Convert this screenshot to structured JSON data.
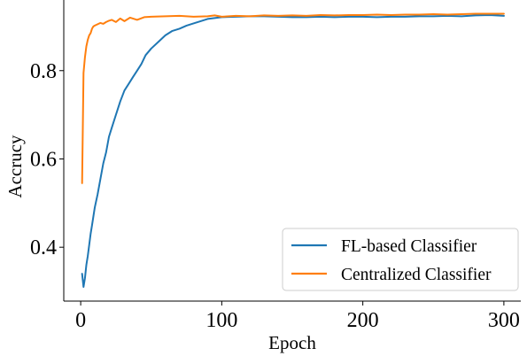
{
  "chart_data": {
    "type": "line",
    "title": "",
    "xlabel": "Epoch",
    "ylabel": "Accrucy",
    "xlim": [
      -12,
      312
    ],
    "ylim": [
      0.278,
      0.96
    ],
    "xticks": [
      0,
      100,
      200,
      300
    ],
    "yticks": [
      0.4,
      0.6,
      0.8
    ],
    "xtick_labels": [
      "0",
      "100",
      "200",
      "300"
    ],
    "ytick_labels": [
      "0.4",
      "0.6",
      "0.8"
    ],
    "grid": false,
    "spines": [
      "left",
      "bottom"
    ],
    "legend_position": "lower-right",
    "series": [
      {
        "name": "FL-based Classifier",
        "color": "#1f77b4",
        "x": [
          1,
          2,
          3,
          4,
          5,
          6,
          7,
          8,
          10,
          12,
          14,
          16,
          18,
          20,
          22,
          25,
          28,
          31,
          34,
          37,
          40,
          43,
          46,
          50,
          55,
          60,
          65,
          70,
          75,
          80,
          85,
          90,
          95,
          100,
          110,
          120,
          130,
          140,
          150,
          160,
          170,
          180,
          190,
          200,
          210,
          220,
          230,
          240,
          250,
          260,
          270,
          280,
          290,
          300
        ],
        "y": [
          0.34,
          0.31,
          0.33,
          0.36,
          0.38,
          0.405,
          0.43,
          0.45,
          0.49,
          0.52,
          0.555,
          0.59,
          0.615,
          0.65,
          0.67,
          0.7,
          0.73,
          0.755,
          0.77,
          0.785,
          0.8,
          0.815,
          0.835,
          0.85,
          0.865,
          0.88,
          0.89,
          0.895,
          0.902,
          0.907,
          0.912,
          0.917,
          0.919,
          0.921,
          0.922,
          0.923,
          0.923,
          0.922,
          0.921,
          0.921,
          0.922,
          0.921,
          0.922,
          0.922,
          0.921,
          0.922,
          0.922,
          0.923,
          0.923,
          0.924,
          0.923,
          0.925,
          0.926,
          0.924
        ]
      },
      {
        "name": "Centralized Classifier",
        "color": "#ff7f0e",
        "x": [
          1,
          2,
          3,
          4,
          5,
          6,
          7,
          8,
          9,
          10,
          12,
          14,
          16,
          18,
          20,
          22,
          25,
          28,
          31,
          35,
          40,
          45,
          50,
          60,
          70,
          80,
          90,
          95,
          100,
          110,
          120,
          130,
          140,
          150,
          160,
          170,
          180,
          190,
          200,
          210,
          220,
          230,
          240,
          250,
          260,
          270,
          280,
          290,
          300
        ],
        "y": [
          0.545,
          0.795,
          0.83,
          0.855,
          0.87,
          0.88,
          0.885,
          0.895,
          0.9,
          0.902,
          0.905,
          0.908,
          0.906,
          0.91,
          0.913,
          0.915,
          0.91,
          0.918,
          0.912,
          0.92,
          0.915,
          0.921,
          0.922,
          0.923,
          0.924,
          0.922,
          0.923,
          0.925,
          0.922,
          0.924,
          0.923,
          0.925,
          0.924,
          0.925,
          0.924,
          0.926,
          0.925,
          0.926,
          0.926,
          0.927,
          0.926,
          0.927,
          0.927,
          0.928,
          0.927,
          0.928,
          0.929,
          0.929,
          0.929
        ]
      }
    ]
  }
}
